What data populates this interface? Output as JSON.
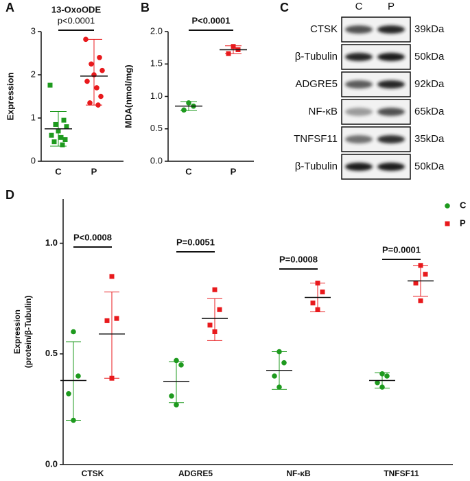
{
  "chart_data": [
    {
      "type": "dot",
      "panel": "A",
      "title": "13-OxoODE",
      "annotation": "p<0.0001",
      "y_label": "Expression",
      "categories": [
        "C",
        "P"
      ],
      "colors": [
        "#1e9a1e",
        "#e8191c"
      ],
      "markers": [
        "square",
        "circle"
      ],
      "values": [
        [
          1.76,
          0.95,
          0.85,
          0.8,
          0.7,
          0.6,
          0.55,
          0.5,
          0.45,
          0.38
        ],
        [
          2.82,
          2.4,
          2.25,
          2.1,
          2.0,
          1.85,
          1.7,
          1.5,
          1.35,
          1.3
        ]
      ],
      "means": [
        0.75,
        1.97
      ],
      "whiskers": [
        [
          0.35,
          1.15
        ],
        [
          1.3,
          2.82
        ]
      ],
      "ylim": [
        0,
        3
      ],
      "yticks": [
        0,
        1,
        2,
        3
      ]
    },
    {
      "type": "dot",
      "panel": "B",
      "annotation": "P<0.0001",
      "y_label": "MDA(nmol/mg)",
      "categories": [
        "C",
        "P"
      ],
      "colors": [
        "#1e9a1e",
        "#e8191c"
      ],
      "markers": [
        "circle",
        "square"
      ],
      "values": [
        [
          0.9,
          0.85,
          0.79
        ],
        [
          1.77,
          1.72,
          1.66
        ]
      ],
      "means": [
        0.85,
        1.72
      ],
      "whiskers": [
        [
          0.78,
          0.92
        ],
        [
          1.66,
          1.78
        ]
      ],
      "ylim": [
        0,
        2
      ],
      "yticks": [
        {
          "value": 0,
          "label": "0.0"
        },
        0.5,
        {
          "value": 1,
          "label": "1.0"
        },
        1.5,
        {
          "value": 2,
          "label": "2.0"
        }
      ]
    },
    {
      "type": "grouped-dot",
      "panel": "D",
      "y_label": [
        "Expression",
        "(protein/β-Tubulin)"
      ],
      "categories": [
        "CTSK",
        "ADGRE5",
        "NF-κB",
        "TNFSF11"
      ],
      "annotations": [
        "P<0.0008",
        "P=0.0051",
        "P=0.0008",
        "P=0.0001"
      ],
      "series": [
        {
          "name": "C",
          "color": "#1e9a1e",
          "marker": "circle",
          "values": [
            [
              0.6,
              0.4,
              0.32,
              0.2
            ],
            [
              0.47,
              0.45,
              0.31,
              0.27
            ],
            [
              0.51,
              0.46,
              0.4,
              0.35
            ],
            [
              0.41,
              0.4,
              0.37,
              0.35
            ]
          ],
          "means": [
            0.38,
            0.375,
            0.425,
            0.38
          ],
          "whiskers": [
            [
              0.2,
              0.555
            ],
            [
              0.28,
              0.465
            ],
            [
              0.34,
              0.51
            ],
            [
              0.345,
              0.415
            ]
          ]
        },
        {
          "name": "P",
          "color": "#e8191c",
          "marker": "square",
          "values": [
            [
              0.85,
              0.66,
              0.65,
              0.39
            ],
            [
              0.79,
              0.7,
              0.63,
              0.6
            ],
            [
              0.82,
              0.78,
              0.73,
              0.7
            ],
            [
              0.9,
              0.86,
              0.82,
              0.74
            ]
          ],
          "means": [
            0.59,
            0.66,
            0.755,
            0.83
          ],
          "whiskers": [
            [
              0.39,
              0.78
            ],
            [
              0.56,
              0.75
            ],
            [
              0.69,
              0.82
            ],
            [
              0.76,
              0.9
            ]
          ]
        }
      ],
      "legend": "top-right",
      "ylim": [
        0,
        1.2
      ],
      "yticks": [
        {
          "value": 0,
          "label": "0.0"
        },
        0.5,
        {
          "value": 1,
          "label": "1.0"
        }
      ]
    }
  ],
  "blot": {
    "panel": "C",
    "columns": [
      "C",
      "P"
    ],
    "rows": [
      {
        "label": "CTSK",
        "size": "39kDa"
      },
      {
        "label": "β-Tubulin",
        "size": "50kDa"
      },
      {
        "label": "ADGRE5",
        "size": "92kDa"
      },
      {
        "label": "NF-κB",
        "size": "65kDa"
      },
      {
        "label": "TNFSF11",
        "size": "35kDa"
      },
      {
        "label": "β-Tubulin",
        "size": "50kDa"
      }
    ]
  }
}
